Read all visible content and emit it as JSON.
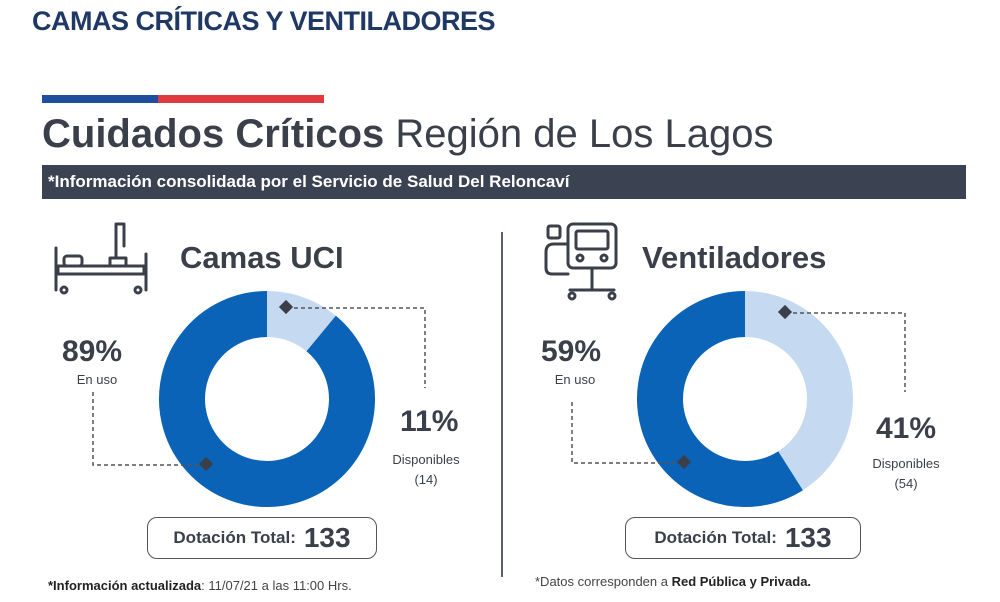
{
  "header": {
    "title": "CAMAS CRÍTICAS Y VENTILADORES"
  },
  "infographic": {
    "headline_bold": "Cuidados Críticos",
    "headline_light": "Región de Los Lagos",
    "banner": "*Información consolidada por el Servicio de Salud Del Reloncaví"
  },
  "camas": {
    "title": "Camas UCI",
    "icon": "hospital-bed-icon",
    "in_use_pct": "89%",
    "in_use_label": "En uso",
    "available_pct": "11%",
    "available_label": "Disponibles",
    "available_count": "(14)",
    "total_label": "Dotación Total:",
    "total_value": "133",
    "in_use_fraction": 0.89
  },
  "ventiladores": {
    "title": "Ventiladores",
    "icon": "ventilator-icon",
    "in_use_pct": "59%",
    "in_use_label": "En uso",
    "available_pct": "41%",
    "available_label": "Disponibles",
    "available_count": "(54)",
    "total_label": "Dotación Total:",
    "total_value": "133",
    "in_use_fraction": 0.59
  },
  "footer": {
    "left_prefix": "*Información actualizada",
    "left_suffix": ": 11/07/21 a las 11:00 Hrs.",
    "right_prefix": "*Datos corresponden a ",
    "right_bold": "Red Pública y Privada."
  },
  "colors": {
    "in_use": "#0a63b7",
    "available": "#c5daf0",
    "banner": "#3b4252",
    "title": "#1f3864"
  }
}
